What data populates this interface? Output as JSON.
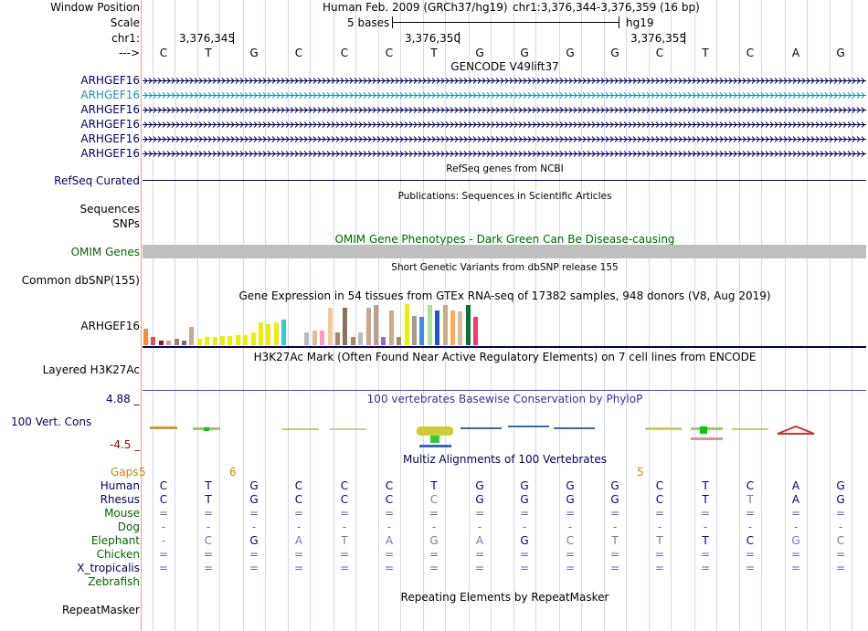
{
  "header": {
    "window_position_label": "Window Position",
    "assembly": "Human Feb. 2009 (GRCh37/hg19)",
    "position": "chr1:3,376,344-3,376,359 (16 bp)",
    "scale_label": "Scale",
    "scale_text": "5 bases",
    "db": "hg19",
    "chrom_label": "chr1:",
    "coord_1": "3,376,345",
    "coord_2": "3,376,350",
    "coord_3": "3,376,355",
    "strand_label": "--->"
  },
  "sequence": [
    "C",
    "T",
    "G",
    "C",
    "C",
    "C",
    "T",
    "G",
    "G",
    "G",
    "G",
    "C",
    "T",
    "C",
    "A",
    "G"
  ],
  "gencode": {
    "title": "GENCODE V49lift37",
    "rows": [
      {
        "label": "ARHGEF16",
        "color": "#000066"
      },
      {
        "label": "ARHGEF16",
        "color": "#1f8fbf"
      },
      {
        "label": "ARHGEF16",
        "color": "#000066"
      },
      {
        "label": "ARHGEF16",
        "color": "#000066"
      },
      {
        "label": "ARHGEF16",
        "color": "#000066"
      },
      {
        "label": "ARHGEF16",
        "color": "#000066"
      }
    ]
  },
  "refseq": {
    "title": "RefSeq genes from NCBI",
    "label": "RefSeq Curated"
  },
  "publications": {
    "title": "Publications: Sequences in Scientific Articles",
    "label_1": "Sequences",
    "label_2": "SNPs"
  },
  "omim": {
    "title": "OMIM Gene Phenotypes - Dark Green Can Be Disease-causing",
    "label": "OMIM Genes"
  },
  "dbsnp": {
    "title": "Short Genetic Variants from dbSNP release 155",
    "label": "Common dbSNP(155)"
  },
  "gtex": {
    "title": "Gene Expression in 54 tissues from GTEx RNA-seq of 17382 samples, 948 donors (V8, Aug 2019)",
    "label": "ARHGEF16",
    "bars": [
      {
        "v": 0.4,
        "c": "#ff8c33"
      },
      {
        "v": 0.2,
        "c": "#d9534f"
      },
      {
        "v": 0.1,
        "c": "#8b1a1a"
      },
      {
        "v": 0.1,
        "c": "#d9a090"
      },
      {
        "v": 0.15,
        "c": "#a08070"
      },
      {
        "v": 0.1,
        "c": "#7a6a6a"
      },
      {
        "v": 0.45,
        "c": "#c8a88e"
      },
      {
        "v": 0.15,
        "c": "#eeee00"
      },
      {
        "v": 0.2,
        "c": "#eeee00"
      },
      {
        "v": 0.2,
        "c": "#eeee00"
      },
      {
        "v": 0.22,
        "c": "#eeee00"
      },
      {
        "v": 0.22,
        "c": "#eeee00"
      },
      {
        "v": 0.25,
        "c": "#eeee00"
      },
      {
        "v": 0.25,
        "c": "#eeee00"
      },
      {
        "v": 0.3,
        "c": "#eeee00"
      },
      {
        "v": 0.55,
        "c": "#eeee00"
      },
      {
        "v": 0.5,
        "c": "#eeee00"
      },
      {
        "v": 0.55,
        "c": "#eeee00"
      },
      {
        "v": 0.62,
        "c": "#33ccdd"
      },
      {
        "v": 0,
        "c": "#ffffff"
      },
      {
        "v": 0,
        "c": "#ffffff"
      },
      {
        "v": 0.32,
        "c": "#bbbbbb"
      },
      {
        "v": 0.35,
        "c": "#ddbb99"
      },
      {
        "v": 0.35,
        "c": "#ff99bb"
      },
      {
        "v": 0.92,
        "c": "#f5c89a"
      },
      {
        "v": 0.3,
        "c": "#aa8866"
      },
      {
        "v": 0.92,
        "c": "#8b7355"
      },
      {
        "v": 0.2,
        "c": "#aa8866"
      },
      {
        "v": 0.3,
        "c": "#bbbbbb"
      },
      {
        "v": 0.92,
        "c": "#c8a88e"
      },
      {
        "v": 0.98,
        "c": "#bba08a"
      },
      {
        "v": 0.2,
        "c": "#9966cc"
      },
      {
        "v": 0.85,
        "c": "#ccaa88"
      },
      {
        "v": 0.2,
        "c": "#aa8866"
      },
      {
        "v": 1.0,
        "c": "#eeee00"
      },
      {
        "v": 0.72,
        "c": "#aa9988"
      },
      {
        "v": 0.7,
        "c": "#4488ee"
      },
      {
        "v": 0.98,
        "c": "#b0e0a0"
      },
      {
        "v": 0.85,
        "c": "#2255cc"
      },
      {
        "v": 0.98,
        "c": "#ccaa88"
      },
      {
        "v": 0.85,
        "c": "#ffaa55"
      },
      {
        "v": 0.82,
        "c": "#ddbb99"
      },
      {
        "v": 0.98,
        "c": "#007733"
      },
      {
        "v": 0.7,
        "c": "#ff3366"
      },
      {
        "v": 0,
        "c": "#ffffff"
      }
    ]
  },
  "h3k27ac": {
    "title": "H3K27Ac Mark (Often Found Near Active Regulatory Elements) on 7 cell lines from ENCODE",
    "label": "Layered H3K27Ac"
  },
  "phylop": {
    "title": "100 vertebrates Basewise Conservation by PhyloP",
    "label": "100 Vert. Cons",
    "max": "4.88 _",
    "min": "-4.5 _"
  },
  "multiz": {
    "title": "Multiz Alignments of 100 Vertebrates",
    "gaps_label": "Gaps",
    "gap_a": "5",
    "gap_b": "6",
    "gap_c": "5",
    "species": [
      {
        "name": "Human",
        "color": "#000066",
        "seq": [
          "C",
          "T",
          "G",
          "C",
          "C",
          "C",
          "T",
          "G",
          "G",
          "G",
          "G",
          "C",
          "T",
          "C",
          "A",
          "G"
        ]
      },
      {
        "name": "Rhesus",
        "color": "#000066",
        "seq": [
          "C",
          "T",
          "G",
          "C",
          "C",
          "C",
          "C",
          "G",
          "G",
          "G",
          "G",
          "C",
          "T",
          "T",
          "A",
          "G"
        ]
      },
      {
        "name": "Mouse",
        "color": "#006600",
        "seq": [
          "=",
          "=",
          "=",
          "=",
          "=",
          "=",
          "=",
          "=",
          "=",
          "=",
          "=",
          "=",
          "=",
          "=",
          "=",
          "="
        ]
      },
      {
        "name": "Dog",
        "color": "#006600",
        "seq": [
          "-",
          "-",
          "-",
          "-",
          "-",
          "-",
          "-",
          "-",
          "-",
          "-",
          "-",
          "-",
          "-",
          "-",
          "-",
          "-"
        ]
      },
      {
        "name": "Elephant",
        "color": "#006600",
        "seq": [
          "-",
          "C",
          "G",
          "A",
          "T",
          "A",
          "G",
          "A",
          "G",
          "C",
          "T",
          "T",
          "T",
          "C",
          "G",
          "C"
        ]
      },
      {
        "name": "Chicken",
        "color": "#006600",
        "seq": [
          "=",
          "=",
          "=",
          "=",
          "=",
          "=",
          "=",
          "=",
          "=",
          "=",
          "=",
          "=",
          "=",
          "=",
          "=",
          "="
        ]
      },
      {
        "name": "X_tropicalis",
        "color": "#000066",
        "seq": [
          "=",
          "=",
          "=",
          "=",
          "=",
          "=",
          "=",
          "=",
          "=",
          "=",
          "=",
          "=",
          "=",
          "=",
          "=",
          "="
        ]
      },
      {
        "name": "Zebrafish",
        "color": "#006600",
        "seq": [
          "",
          "",
          "",
          "",
          "",
          "",
          "",
          "",
          "",
          "",
          "",
          "",
          "",
          "",
          "",
          ""
        ]
      }
    ]
  },
  "repeatmasker": {
    "title": "Repeating Elements by RepeatMasker",
    "label": "RepeatMasker"
  }
}
